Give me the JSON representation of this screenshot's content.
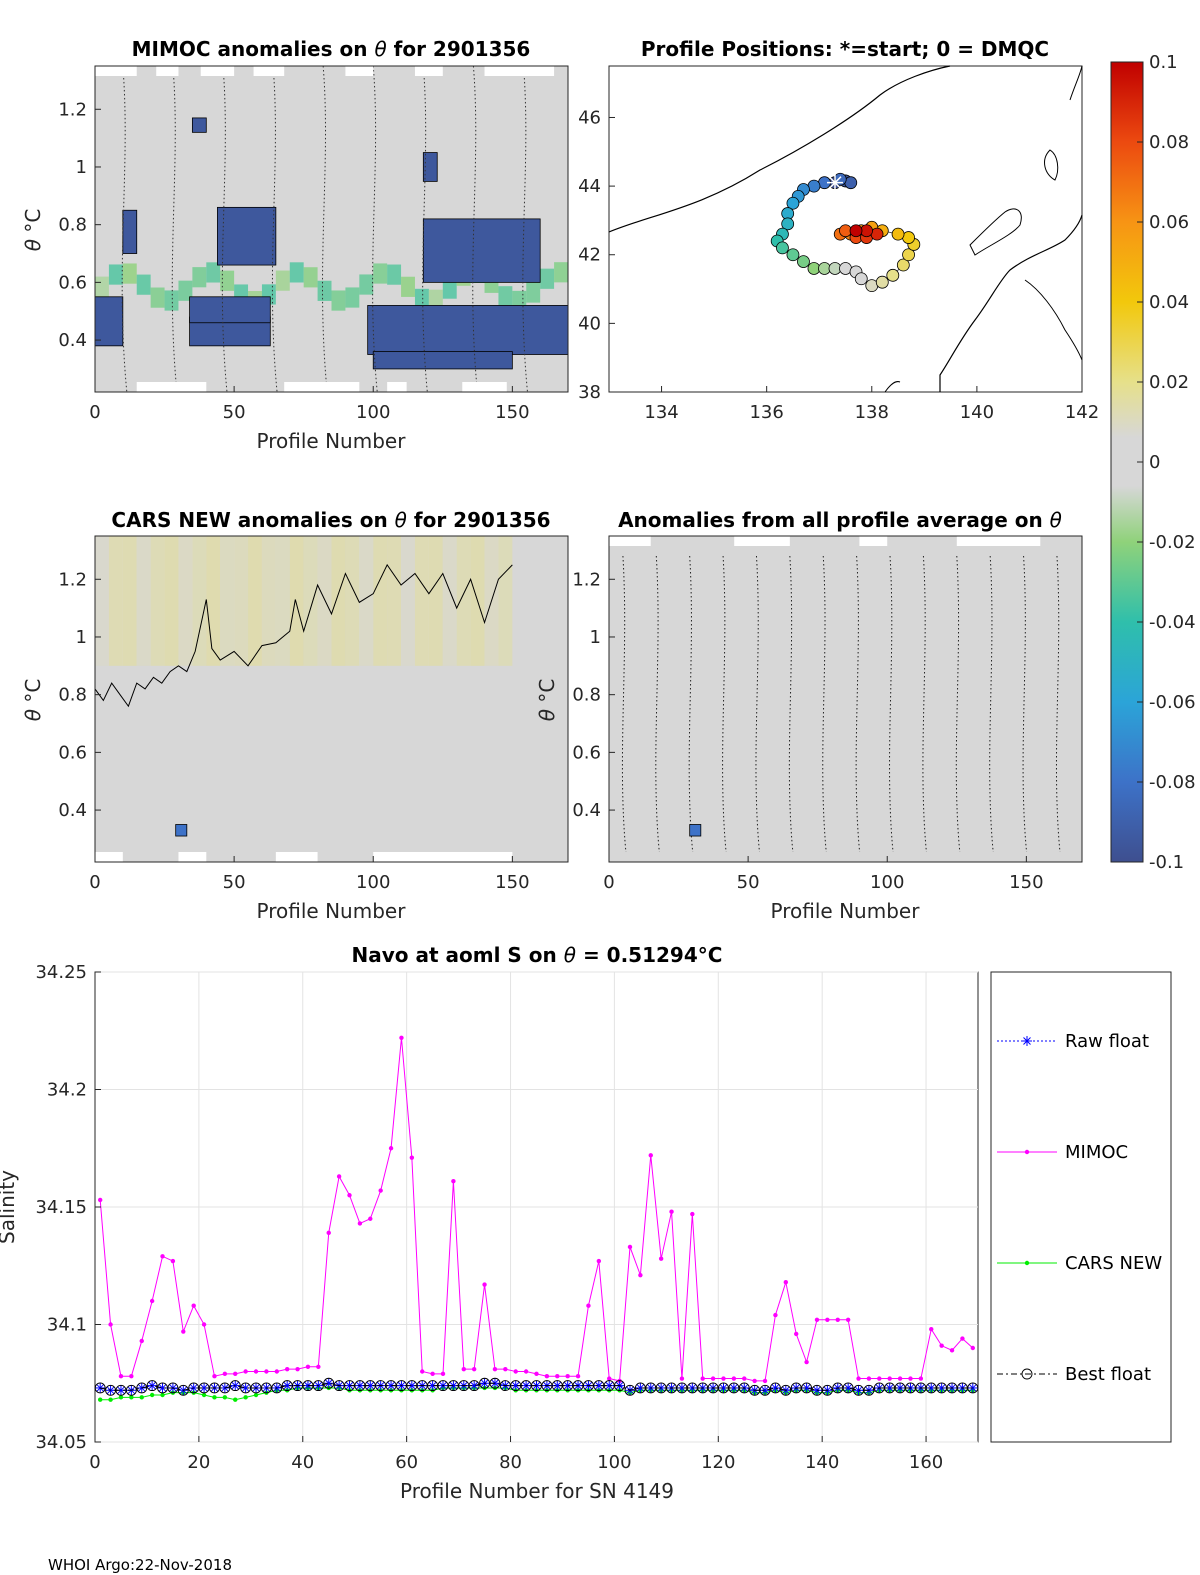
{
  "footer": "WHOI Argo:22-Nov-2018",
  "chart_data": [
    {
      "type": "heatmap",
      "title_prefix": "MIMOC anomalies on ",
      "title_symbol": "θ",
      "title_suffix": "  for 2901356",
      "xlabel": "Profile Number",
      "ylabel_symbol": "θ",
      "ylabel_unit": "°C",
      "xlim": [
        0,
        170
      ],
      "ylim": [
        0.22,
        1.35
      ],
      "xticks": [
        0,
        50,
        100,
        150
      ],
      "yticks": [
        0.4,
        0.6,
        0.8,
        1,
        1.2
      ],
      "ytick_labels": [
        "0.4",
        "0.6",
        "0.8",
        "1",
        "1.2"
      ],
      "field_value": 0.0,
      "strong_anomaly_value": -0.095,
      "strong_bands": [
        {
          "x": [
            34,
            63
          ],
          "y": [
            0.38,
            0.48
          ]
        },
        {
          "x": [
            34,
            63
          ],
          "y": [
            0.46,
            0.55
          ]
        },
        {
          "x": [
            98,
            170
          ],
          "y": [
            0.35,
            0.52
          ]
        },
        {
          "x": [
            0,
            10
          ],
          "y": [
            0.38,
            0.55
          ]
        },
        {
          "x": [
            35,
            40
          ],
          "y": [
            1.12,
            1.17
          ]
        },
        {
          "x": [
            118,
            123
          ],
          "y": [
            0.95,
            1.05
          ]
        },
        {
          "x": [
            44,
            65
          ],
          "y": [
            0.66,
            0.86
          ]
        },
        {
          "x": [
            118,
            160
          ],
          "y": [
            0.6,
            0.82
          ]
        },
        {
          "x": [
            10,
            15
          ],
          "y": [
            0.7,
            0.85
          ]
        },
        {
          "x": [
            100,
            150
          ],
          "y": [
            0.3,
            0.36
          ]
        }
      ]
    },
    {
      "type": "scatter",
      "title": "Profile Positions: *=start; 0 = DMQC",
      "xlim": [
        133,
        142
      ],
      "ylim": [
        38,
        47.5
      ],
      "xticks": [
        134,
        136,
        138,
        140,
        142
      ],
      "yticks": [
        38,
        40,
        42,
        44,
        46
      ],
      "start_marker": [
        137.3,
        44.1
      ],
      "track_colored_by": "profile index (blue=start, red=end)",
      "track": [
        [
          137.3,
          44.1
        ],
        [
          137.5,
          44.15
        ],
        [
          137.6,
          44.1
        ],
        [
          137.4,
          44.2
        ],
        [
          137.1,
          44.1
        ],
        [
          136.9,
          44.0
        ],
        [
          136.7,
          43.9
        ],
        [
          136.6,
          43.7
        ],
        [
          136.5,
          43.5
        ],
        [
          136.4,
          43.2
        ],
        [
          136.4,
          42.9
        ],
        [
          136.3,
          42.6
        ],
        [
          136.2,
          42.4
        ],
        [
          136.3,
          42.2
        ],
        [
          136.5,
          42.0
        ],
        [
          136.7,
          41.8
        ],
        [
          136.9,
          41.6
        ],
        [
          137.1,
          41.6
        ],
        [
          137.3,
          41.6
        ],
        [
          137.5,
          41.6
        ],
        [
          137.7,
          41.5
        ],
        [
          137.8,
          41.3
        ],
        [
          138.0,
          41.1
        ],
        [
          138.2,
          41.2
        ],
        [
          138.4,
          41.4
        ],
        [
          138.6,
          41.7
        ],
        [
          138.7,
          42.0
        ],
        [
          138.8,
          42.3
        ],
        [
          138.7,
          42.5
        ],
        [
          138.5,
          42.6
        ],
        [
          138.2,
          42.7
        ],
        [
          138.0,
          42.8
        ],
        [
          137.8,
          42.7
        ],
        [
          137.6,
          42.6
        ],
        [
          137.4,
          42.6
        ],
        [
          137.5,
          42.7
        ],
        [
          137.7,
          42.5
        ],
        [
          137.9,
          42.5
        ],
        [
          138.1,
          42.6
        ],
        [
          137.9,
          42.7
        ],
        [
          137.7,
          42.7
        ]
      ]
    },
    {
      "type": "heatmap",
      "title_prefix": "CARS NEW anomalies on ",
      "title_symbol": "θ",
      "title_suffix": " for 2901356",
      "xlabel": "Profile Number",
      "ylabel_symbol": "θ",
      "ylabel_unit": "°C",
      "xlim": [
        0,
        170
      ],
      "ylim": [
        0.22,
        1.35
      ],
      "xticks": [
        0,
        50,
        100,
        150
      ],
      "yticks": [
        0.4,
        0.6,
        0.8,
        1,
        1.2
      ],
      "ytick_labels": [
        "0.4",
        "0.6",
        "0.8",
        "1",
        "1.2"
      ],
      "zero_contour_x": [
        0,
        3,
        6,
        9,
        12,
        15,
        18,
        21,
        24,
        27,
        30,
        33,
        36,
        40,
        42,
        45,
        50,
        55,
        60,
        65,
        70,
        72,
        75,
        80,
        85,
        90,
        95,
        100,
        105,
        110,
        115,
        120,
        125,
        130,
        135,
        140,
        145,
        150
      ],
      "zero_contour_y": [
        0.82,
        0.78,
        0.84,
        0.8,
        0.76,
        0.84,
        0.82,
        0.86,
        0.84,
        0.88,
        0.9,
        0.88,
        0.95,
        1.13,
        0.96,
        0.92,
        0.95,
        0.9,
        0.97,
        0.98,
        1.02,
        1.13,
        1.02,
        1.18,
        1.08,
        1.22,
        1.12,
        1.15,
        1.25,
        1.18,
        1.22,
        1.15,
        1.22,
        1.1,
        1.2,
        1.05,
        1.2,
        1.25
      ],
      "strong_spot": {
        "x": [
          29,
          33
        ],
        "y": [
          0.31,
          0.35
        ]
      }
    },
    {
      "type": "heatmap",
      "title_prefix": "Anomalies from all profile average on ",
      "title_symbol": "θ",
      "title_suffix": "",
      "xlabel": "Profile Number",
      "ylabel_symbol": "θ",
      "ylabel_unit": "°C",
      "xlim": [
        0,
        170
      ],
      "ylim": [
        0.22,
        1.35
      ],
      "xticks": [
        0,
        50,
        100,
        150
      ],
      "yticks": [
        0.4,
        0.6,
        0.8,
        1,
        1.2
      ],
      "ytick_labels": [
        "0.4",
        "0.6",
        "0.8",
        "1",
        "1.2"
      ],
      "strong_spot": {
        "x": [
          29,
          33
        ],
        "y": [
          0.31,
          0.35
        ]
      }
    },
    {
      "type": "colorbar",
      "range": [
        -0.1,
        0.1
      ],
      "ticks": [
        0.1,
        0.08,
        0.06,
        0.04,
        0.02,
        0,
        -0.02,
        -0.04,
        -0.06,
        -0.08,
        -0.1
      ],
      "tick_labels": [
        "0.1",
        "0.08",
        "0.06",
        "0.04",
        "0.02",
        "0",
        "-0.02",
        "-0.04",
        "-0.06",
        "-0.08",
        "-0.1"
      ],
      "colormap": "parula-like with gray near zero"
    },
    {
      "type": "line",
      "title_prefix": "Navo at aoml S on ",
      "title_symbol": "θ",
      "title_value": " = 0.51294",
      "title_unit": "°C",
      "xlabel": "Profile Number for SN 4149",
      "ylabel": "Salinity",
      "xlim": [
        0,
        170
      ],
      "ylim": [
        34.05,
        34.25
      ],
      "xticks": [
        0,
        20,
        40,
        60,
        80,
        100,
        120,
        140,
        160
      ],
      "yticks": [
        34.05,
        34.1,
        34.15,
        34.2,
        34.25
      ],
      "ytick_labels": [
        "34.05",
        "34.1",
        "34.15",
        "34.2",
        "34.25"
      ],
      "grid": true,
      "legend_placement": "outside-right",
      "x": [
        1,
        3,
        5,
        7,
        9,
        11,
        13,
        15,
        17,
        19,
        21,
        23,
        25,
        27,
        29,
        31,
        33,
        35,
        37,
        39,
        41,
        43,
        45,
        47,
        49,
        51,
        53,
        55,
        57,
        59,
        61,
        63,
        65,
        67,
        69,
        71,
        73,
        75,
        77,
        79,
        81,
        83,
        85,
        87,
        89,
        91,
        93,
        95,
        97,
        99,
        101,
        103,
        105,
        107,
        109,
        111,
        113,
        115,
        117,
        119,
        121,
        123,
        125,
        127,
        129,
        131,
        133,
        135,
        137,
        139,
        141,
        143,
        145,
        147,
        149,
        151,
        153,
        155,
        157,
        159,
        161,
        163,
        165,
        167,
        169
      ],
      "series": [
        {
          "name": "Raw float",
          "color": "#0000ff",
          "marker": "asterisk",
          "values": [
            34.073,
            34.072,
            34.072,
            34.072,
            34.073,
            34.074,
            34.073,
            34.073,
            34.072,
            34.073,
            34.073,
            34.073,
            34.073,
            34.074,
            34.073,
            34.073,
            34.073,
            34.073,
            34.074,
            34.074,
            34.074,
            34.074,
            34.075,
            34.074,
            34.074,
            34.074,
            34.074,
            34.074,
            34.074,
            34.074,
            34.074,
            34.074,
            34.074,
            34.074,
            34.074,
            34.074,
            34.074,
            34.075,
            34.075,
            34.074,
            34.074,
            34.074,
            34.074,
            34.074,
            34.074,
            34.074,
            34.074,
            34.074,
            34.074,
            34.074,
            34.074,
            34.072,
            34.073,
            34.073,
            34.073,
            34.073,
            34.073,
            34.073,
            34.073,
            34.073,
            34.073,
            34.073,
            34.073,
            34.072,
            34.072,
            34.073,
            34.072,
            34.073,
            34.073,
            34.072,
            34.072,
            34.073,
            34.073,
            34.072,
            34.072,
            34.073,
            34.073,
            34.073,
            34.073,
            34.073,
            34.073,
            34.073,
            34.073,
            34.073,
            34.073
          ]
        },
        {
          "name": "MIMOC",
          "color": "#ff00ff",
          "marker": "dot",
          "values": [
            34.153,
            34.1,
            34.078,
            34.078,
            34.093,
            34.11,
            34.129,
            34.127,
            34.097,
            34.108,
            34.1,
            34.078,
            34.079,
            34.079,
            34.08,
            34.08,
            34.08,
            34.08,
            34.081,
            34.081,
            34.082,
            34.082,
            34.139,
            34.163,
            34.155,
            34.143,
            34.145,
            34.157,
            34.175,
            34.222,
            34.171,
            34.08,
            34.079,
            34.079,
            34.161,
            34.081,
            34.081,
            34.117,
            34.081,
            34.081,
            34.08,
            34.08,
            34.079,
            34.078,
            34.078,
            34.078,
            34.078,
            34.108,
            34.127,
            34.077,
            34.076,
            34.133,
            34.121,
            34.172,
            34.128,
            34.148,
            34.077,
            34.147,
            34.077,
            34.077,
            34.077,
            34.077,
            34.077,
            34.076,
            34.076,
            34.104,
            34.118,
            34.096,
            34.084,
            34.102,
            34.102,
            34.102,
            34.102,
            34.077,
            34.077,
            34.077,
            34.077,
            34.077,
            34.077,
            34.077,
            34.098,
            34.091,
            34.089,
            34.094,
            34.09
          ]
        },
        {
          "name": "CARS NEW",
          "color": "#00ee00",
          "marker": "dot",
          "values": [
            34.068,
            34.068,
            34.069,
            34.069,
            34.069,
            34.07,
            34.07,
            34.071,
            34.071,
            34.071,
            34.07,
            34.069,
            34.069,
            34.068,
            34.069,
            34.07,
            34.071,
            34.072,
            34.072,
            34.073,
            34.073,
            34.073,
            34.073,
            34.073,
            34.072,
            34.072,
            34.072,
            34.072,
            34.072,
            34.072,
            34.072,
            34.072,
            34.072,
            34.073,
            34.073,
            34.073,
            34.073,
            34.073,
            34.073,
            34.073,
            34.072,
            34.072,
            34.072,
            34.072,
            34.072,
            34.072,
            34.072,
            34.072,
            34.072,
            34.072,
            34.072,
            34.071,
            34.072,
            34.072,
            34.072,
            34.072,
            34.072,
            34.072,
            34.072,
            34.072,
            34.072,
            34.072,
            34.072,
            34.071,
            34.071,
            34.072,
            34.071,
            34.072,
            34.072,
            34.071,
            34.071,
            34.072,
            34.072,
            34.071,
            34.071,
            34.072,
            34.072,
            34.072,
            34.072,
            34.072,
            34.072,
            34.072,
            34.072,
            34.072,
            34.072
          ]
        },
        {
          "name": "Best float",
          "color": "#000000",
          "marker": "circle",
          "values": [
            34.073,
            34.072,
            34.072,
            34.072,
            34.073,
            34.074,
            34.073,
            34.073,
            34.072,
            34.073,
            34.073,
            34.073,
            34.073,
            34.074,
            34.073,
            34.073,
            34.073,
            34.073,
            34.074,
            34.074,
            34.074,
            34.074,
            34.075,
            34.074,
            34.074,
            34.074,
            34.074,
            34.074,
            34.074,
            34.074,
            34.074,
            34.074,
            34.074,
            34.074,
            34.074,
            34.074,
            34.074,
            34.075,
            34.075,
            34.074,
            34.074,
            34.074,
            34.074,
            34.074,
            34.074,
            34.074,
            34.074,
            34.074,
            34.074,
            34.074,
            34.074,
            34.072,
            34.073,
            34.073,
            34.073,
            34.073,
            34.073,
            34.073,
            34.073,
            34.073,
            34.073,
            34.073,
            34.073,
            34.072,
            34.072,
            34.073,
            34.072,
            34.073,
            34.073,
            34.072,
            34.072,
            34.073,
            34.073,
            34.072,
            34.072,
            34.073,
            34.073,
            34.073,
            34.073,
            34.073,
            34.073,
            34.073,
            34.073,
            34.073,
            34.073
          ]
        }
      ]
    }
  ]
}
